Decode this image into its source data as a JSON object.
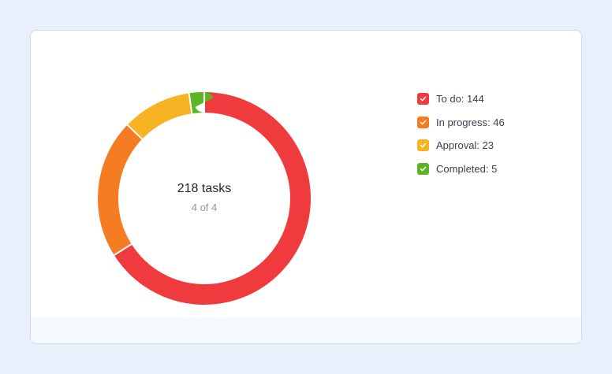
{
  "center": {
    "title": "218 tasks",
    "subtitle": "4 of 4"
  },
  "legend": [
    {
      "label": "To do: 144",
      "color": "#ef3b3d",
      "checked": true,
      "icon": "check-icon"
    },
    {
      "label": "In progress: 46",
      "color": "#f67c24",
      "checked": true,
      "icon": "check-icon"
    },
    {
      "label": "Approval: 23",
      "color": "#f8b324",
      "checked": true,
      "icon": "check-icon"
    },
    {
      "label": "Completed: 5",
      "color": "#5cb527",
      "checked": true,
      "icon": "check-icon"
    }
  ],
  "chart_data": {
    "type": "pie",
    "donut": true,
    "categories": [
      "To do",
      "In progress",
      "Approval",
      "Completed"
    ],
    "values": [
      144,
      46,
      23,
      5
    ],
    "colors": [
      "#ef3b3d",
      "#f67c24",
      "#f8b324",
      "#5cb527"
    ],
    "total_label": "218 tasks",
    "legend_position": "right"
  }
}
